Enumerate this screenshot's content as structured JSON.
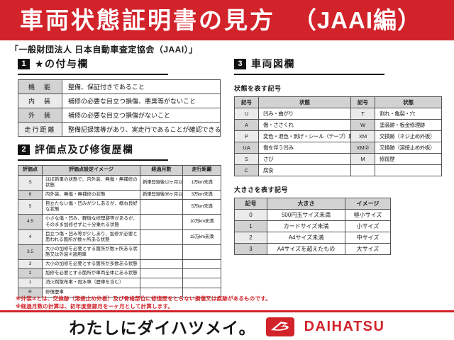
{
  "header": {
    "title": "車両状態証明書の見方",
    "title_suffix": "（JAAI編）",
    "credit": "「一般財団法人 日本自動車査定協会（JAAI）」"
  },
  "section1": {
    "number": "1",
    "title": "★の付与欄",
    "rows": [
      {
        "label": "機　能",
        "desc": "整備、保証付きであること"
      },
      {
        "label": "内　装",
        "desc": "補修の必要な目立つ損傷、悪臭等がないこと"
      },
      {
        "label": "外　装",
        "desc": "補修の必要な目立つ損傷がないこと"
      },
      {
        "label": "走行距離",
        "desc": "整備記録簿等があり、実走行であることが確認できること"
      }
    ]
  },
  "section2": {
    "number": "2",
    "title": "評価点及び修復歴欄",
    "headers": [
      "評価点",
      "評価点設定イメージ",
      "経過月数",
      "走行距離"
    ],
    "rows": [
      {
        "grade": "S",
        "desc": "ほぼ新車の状態で、内外装、無傷・無補修の状態",
        "months": "新車登録後12ヶ月以内",
        "mileage": "1万km未満"
      },
      {
        "grade": "6",
        "desc": "内外装、無傷・無補修の状態",
        "months": "新車登録後36ヶ月以内",
        "mileage": "3万km未満"
      },
      {
        "grade": "5",
        "desc": "目立たない傷・凹みが少しあるが、概ね良好な状態",
        "months": "",
        "mileage": "5万km未満"
      },
      {
        "grade": "4.5",
        "desc": "小さな傷・凹み、軽微な修理跡等があるが、そのまま加修せずに十分乗れる状態",
        "months": "",
        "mileage": "10万km未満"
      },
      {
        "grade": "4",
        "desc": "目立つ傷・凹み等が少しあり、加修が必要と思われる箇所が数ヶ所ある状態",
        "months": "",
        "mileage": "15万km未満"
      },
      {
        "grade": "3.5",
        "desc": "大小の加修を必要とする箇所が数ヶ所ある状態又は外装②適用車",
        "months": "",
        "mileage": ""
      },
      {
        "grade": "3",
        "desc": "大小の加修を必要とする箇所が多数ある状態",
        "months": "",
        "mileage": ""
      },
      {
        "grade": "2",
        "desc": "加修を必要とする箇所が車両全体にある状態",
        "months": "",
        "mileage": ""
      },
      {
        "grade": "1",
        "desc": "消火剤散布車・冠水車（歴車を含む）",
        "months": "",
        "mileage": ""
      },
      {
        "grade": "R",
        "desc": "修復歴車",
        "months": "",
        "mileage": ""
      }
    ]
  },
  "section3": {
    "number": "3",
    "title": "車両図欄",
    "state_table": {
      "caption": "状態を表す記号",
      "headers": [
        "記号",
        "状態",
        "記号",
        "状態"
      ],
      "rows": [
        [
          "U",
          "凹み・曲がり",
          "T",
          "割れ・亀裂・穴"
        ],
        [
          "A",
          "傷・ささくれ",
          "W",
          "塗装跡・板金修理跡"
        ],
        [
          "P",
          "変色・退色・剥げ・シール（テープ）跡",
          "XM",
          "交換跡（ネジ止め外板）"
        ],
        [
          "UA",
          "傷を伴う凹み",
          "XM②",
          "交換跡（溶接止め外板）"
        ],
        [
          "S",
          "さび",
          "M",
          "修復歴"
        ],
        [
          "C",
          "腐食",
          "",
          ""
        ]
      ]
    },
    "size_table": {
      "caption": "大きさを表す記号",
      "headers": [
        "記号",
        "大きさ",
        "イメージ"
      ],
      "rows": [
        [
          "0",
          "500円玉サイズ未満",
          "極小サイズ"
        ],
        [
          "1",
          "カードサイズ未満",
          "小サイズ"
        ],
        [
          "2",
          "A4サイズ未満",
          "中サイズ"
        ],
        [
          "3",
          "A4サイズを超えたもの",
          "大サイズ"
        ]
      ]
    }
  },
  "footnotes": [
    "※外装②とは、交換跡（溶接止め外板）及び骨格部位に修復歴をとらない損傷又は痕跡があるものです。",
    "※経過月数の計算は、初年度登録月を一ヶ月として計算します。"
  ],
  "footer": {
    "slogan": "わたしにダイハツメイ。",
    "brand": "DAIHATSU"
  },
  "colors": {
    "brand_red": "#d2232b",
    "table_header_gray": "#d2d2d2",
    "row_alt_gray": "#ebebeb"
  }
}
